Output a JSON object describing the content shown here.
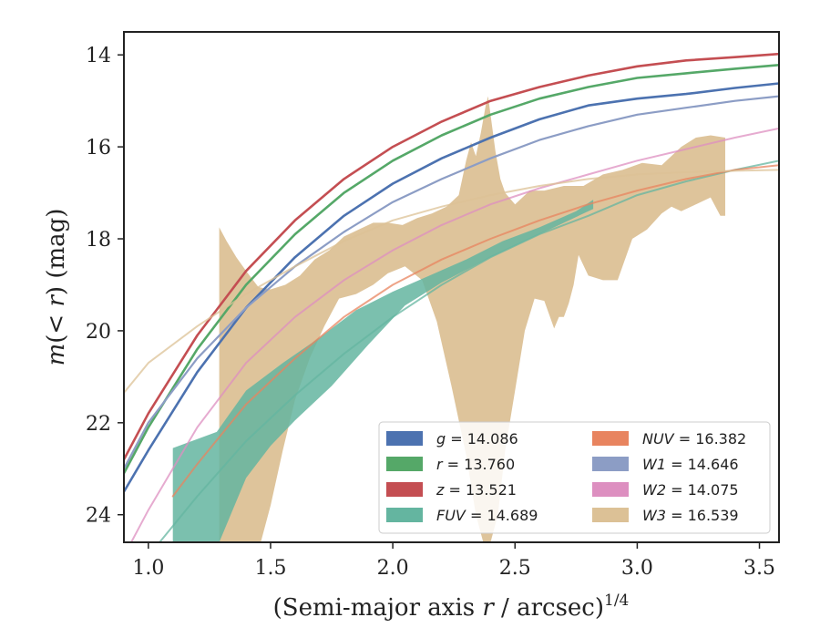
{
  "chart_data": {
    "type": "line",
    "xlabel": "(Semi-major axis r / arcsec)^1/4",
    "ylabel": "m(< r) (mag)",
    "xlim": [
      0.9,
      3.58
    ],
    "ylim": [
      24.6,
      13.5
    ],
    "y_inverted": true,
    "x_ticks": [
      {
        "value": 1.0,
        "label": "1.0"
      },
      {
        "value": 1.5,
        "label": "1.5"
      },
      {
        "value": 2.0,
        "label": "2.0"
      },
      {
        "value": 2.5,
        "label": "2.5"
      },
      {
        "value": 3.0,
        "label": "3.0"
      },
      {
        "value": 3.5,
        "label": "3.5"
      }
    ],
    "y_ticks": [
      {
        "value": 14,
        "label": "14"
      },
      {
        "value": 16,
        "label": "16"
      },
      {
        "value": 18,
        "label": "18"
      },
      {
        "value": 20,
        "label": "20"
      },
      {
        "value": 22,
        "label": "22"
      },
      {
        "value": 24,
        "label": "24"
      }
    ],
    "grid": false,
    "legend_position": "lower-right",
    "series": [
      {
        "name": "g = 14.086",
        "var": "g",
        "value": "14.086",
        "color": "#4c72b0",
        "x": [
          0.9,
          1.0,
          1.2,
          1.4,
          1.6,
          1.8,
          2.0,
          2.2,
          2.4,
          2.6,
          2.8,
          3.0,
          3.2,
          3.4,
          3.58
        ],
        "y": [
          23.5,
          22.6,
          20.9,
          19.5,
          18.4,
          17.5,
          16.8,
          16.25,
          15.8,
          15.4,
          15.1,
          14.95,
          14.85,
          14.72,
          14.62
        ],
        "band": 0.06
      },
      {
        "name": "r = 13.760",
        "var": "r",
        "value": "13.760",
        "color": "#55a868",
        "x": [
          0.9,
          1.0,
          1.2,
          1.4,
          1.6,
          1.8,
          2.0,
          2.2,
          2.4,
          2.6,
          2.8,
          3.0,
          3.2,
          3.4,
          3.58
        ],
        "y": [
          23.1,
          22.1,
          20.4,
          19.0,
          17.9,
          17.0,
          16.3,
          15.75,
          15.3,
          14.95,
          14.7,
          14.5,
          14.4,
          14.3,
          14.22
        ],
        "band": 0.06
      },
      {
        "name": "z = 13.521",
        "var": "z",
        "value": "13.521",
        "color": "#c44e52",
        "x": [
          0.9,
          1.0,
          1.2,
          1.4,
          1.6,
          1.8,
          2.0,
          2.2,
          2.4,
          2.6,
          2.8,
          3.0,
          3.2,
          3.4,
          3.58
        ],
        "y": [
          22.8,
          21.8,
          20.1,
          18.7,
          17.6,
          16.7,
          16.0,
          15.45,
          15.0,
          14.7,
          14.45,
          14.25,
          14.12,
          14.05,
          13.98
        ],
        "band": 0.06
      },
      {
        "name": "FUV = 14.689",
        "var": "FUV",
        "value": "14.689",
        "color": "#64b5a0",
        "x": [
          0.9,
          1.0,
          1.2,
          1.4,
          1.6,
          1.8,
          2.0,
          2.2,
          2.4,
          2.6,
          2.8,
          3.0,
          3.2,
          3.4,
          3.58
        ],
        "y": [
          25.6,
          24.9,
          23.6,
          22.4,
          21.4,
          20.5,
          19.7,
          19.0,
          18.4,
          17.9,
          17.5,
          17.05,
          16.75,
          16.5,
          16.3
        ],
        "band": 0.04
      },
      {
        "name": "NUV = 16.382",
        "var": "NUV",
        "value": "16.382",
        "color": "#e8845f",
        "x": [
          1.1,
          1.2,
          1.4,
          1.6,
          1.8,
          2.0,
          2.2,
          2.4,
          2.6,
          2.8,
          3.0,
          3.2,
          3.4,
          3.58
        ],
        "y": [
          23.6,
          22.9,
          21.6,
          20.6,
          19.7,
          19.0,
          18.45,
          18.0,
          17.6,
          17.25,
          16.95,
          16.7,
          16.5,
          16.4
        ],
        "band": 0.06
      },
      {
        "name": "W1 = 14.646",
        "var": "W1",
        "value": "14.646",
        "color": "#8c9dc5",
        "x": [
          0.9,
          1.0,
          1.2,
          1.4,
          1.6,
          1.8,
          2.0,
          2.2,
          2.4,
          2.6,
          2.8,
          3.0,
          3.2,
          3.4,
          3.58
        ],
        "y": [
          23.0,
          22.0,
          20.6,
          19.5,
          18.6,
          17.85,
          17.2,
          16.7,
          16.25,
          15.85,
          15.55,
          15.3,
          15.15,
          15.0,
          14.9
        ],
        "band": 0.04
      },
      {
        "name": "W2 = 14.075",
        "var": "W2",
        "value": "14.075",
        "color": "#dd8fc0",
        "x": [
          0.9,
          1.0,
          1.2,
          1.4,
          1.6,
          1.8,
          2.0,
          2.2,
          2.4,
          2.6,
          2.8,
          3.0,
          3.2,
          3.4,
          3.58
        ],
        "y": [
          24.9,
          23.9,
          22.1,
          20.7,
          19.7,
          18.9,
          18.25,
          17.7,
          17.25,
          16.9,
          16.6,
          16.3,
          16.05,
          15.8,
          15.6
        ],
        "band": 0.04
      },
      {
        "name": "W3 = 16.539",
        "var": "W3",
        "value": "16.539",
        "color": "#dcc196",
        "x": [
          0.9,
          1.0,
          1.2,
          1.4,
          1.6,
          1.8,
          2.0,
          2.2,
          2.4,
          2.6,
          2.8,
          3.0,
          3.2,
          3.4,
          3.58
        ],
        "y": [
          21.35,
          20.7,
          19.9,
          19.2,
          18.6,
          18.05,
          17.6,
          17.3,
          17.05,
          16.85,
          16.7,
          16.6,
          16.55,
          16.52,
          16.5
        ],
        "band": 0.04,
        "fill_upper": {
          "x": [
            1.29,
            1.29,
            1.32,
            1.36,
            1.4,
            1.45,
            1.5,
            1.56,
            1.62,
            1.68,
            1.74,
            1.8,
            1.86,
            1.92,
            1.98,
            2.04,
            2.1,
            2.16,
            2.22,
            2.27,
            2.3,
            2.32,
            2.34,
            2.36,
            2.38,
            2.39,
            2.4,
            2.42,
            2.44,
            2.46,
            2.5,
            2.56,
            2.62,
            2.7,
            2.78,
            2.86,
            2.94,
            3.02,
            3.1,
            3.18,
            3.24,
            3.3,
            3.36
          ],
          "y": [
            24.6,
            17.75,
            18.05,
            18.4,
            18.7,
            19.05,
            19.1,
            19.0,
            18.8,
            18.45,
            18.25,
            17.95,
            17.8,
            17.65,
            17.65,
            17.7,
            17.55,
            17.45,
            17.3,
            17.05,
            16.3,
            15.9,
            16.2,
            15.7,
            15.1,
            14.9,
            15.3,
            16.1,
            16.7,
            17.0,
            17.25,
            16.95,
            16.95,
            16.85,
            16.85,
            16.6,
            16.5,
            16.35,
            16.4,
            16.0,
            15.8,
            15.75,
            15.8
          ]
        },
        "fill_lower": {
          "x": [
            1.29,
            1.32,
            1.36,
            1.4,
            1.43,
            1.46,
            1.5,
            1.55,
            1.6,
            1.66,
            1.72,
            1.78,
            1.85,
            1.92,
            1.98,
            2.05,
            2.12,
            2.18,
            2.24,
            2.3,
            2.34,
            2.37,
            2.4,
            2.43,
            2.46,
            2.5,
            2.54,
            2.58,
            2.62,
            2.66,
            2.68,
            2.7,
            2.72,
            2.74,
            2.76,
            2.8,
            2.86,
            2.92,
            2.98,
            3.04,
            3.1,
            3.14,
            3.18,
            3.24,
            3.3,
            3.34,
            3.36
          ],
          "y": [
            24.6,
            24.6,
            24.6,
            24.6,
            24.6,
            24.6,
            23.8,
            22.6,
            21.5,
            20.6,
            19.9,
            19.3,
            19.2,
            19.0,
            18.75,
            18.6,
            18.9,
            19.8,
            21.2,
            22.7,
            24.0,
            24.6,
            24.6,
            24.0,
            22.6,
            21.3,
            20.0,
            19.3,
            19.35,
            19.95,
            19.7,
            19.7,
            19.4,
            19.0,
            18.35,
            18.8,
            18.9,
            18.9,
            18.0,
            17.8,
            17.45,
            17.3,
            17.4,
            17.25,
            17.1,
            17.5,
            17.5
          ]
        }
      }
    ],
    "fuv_fill": {
      "x_upper": [
        1.1,
        1.28,
        1.4,
        1.55,
        1.7,
        1.85,
        2.0,
        2.15,
        2.3,
        2.45,
        2.6,
        2.75,
        2.82
      ],
      "y_upper": [
        22.55,
        22.2,
        21.3,
        20.7,
        20.15,
        19.55,
        19.15,
        18.8,
        18.45,
        18.05,
        17.75,
        17.4,
        17.15
      ],
      "x_lower": [
        2.82,
        2.6,
        2.4,
        2.2,
        2.05,
        1.9,
        1.75,
        1.6,
        1.5,
        1.4,
        1.29,
        1.29,
        1.1
      ],
      "y_lower": [
        17.35,
        17.9,
        18.4,
        18.95,
        19.45,
        20.3,
        21.2,
        21.95,
        22.5,
        23.2,
        24.6,
        24.6,
        24.6
      ]
    }
  }
}
